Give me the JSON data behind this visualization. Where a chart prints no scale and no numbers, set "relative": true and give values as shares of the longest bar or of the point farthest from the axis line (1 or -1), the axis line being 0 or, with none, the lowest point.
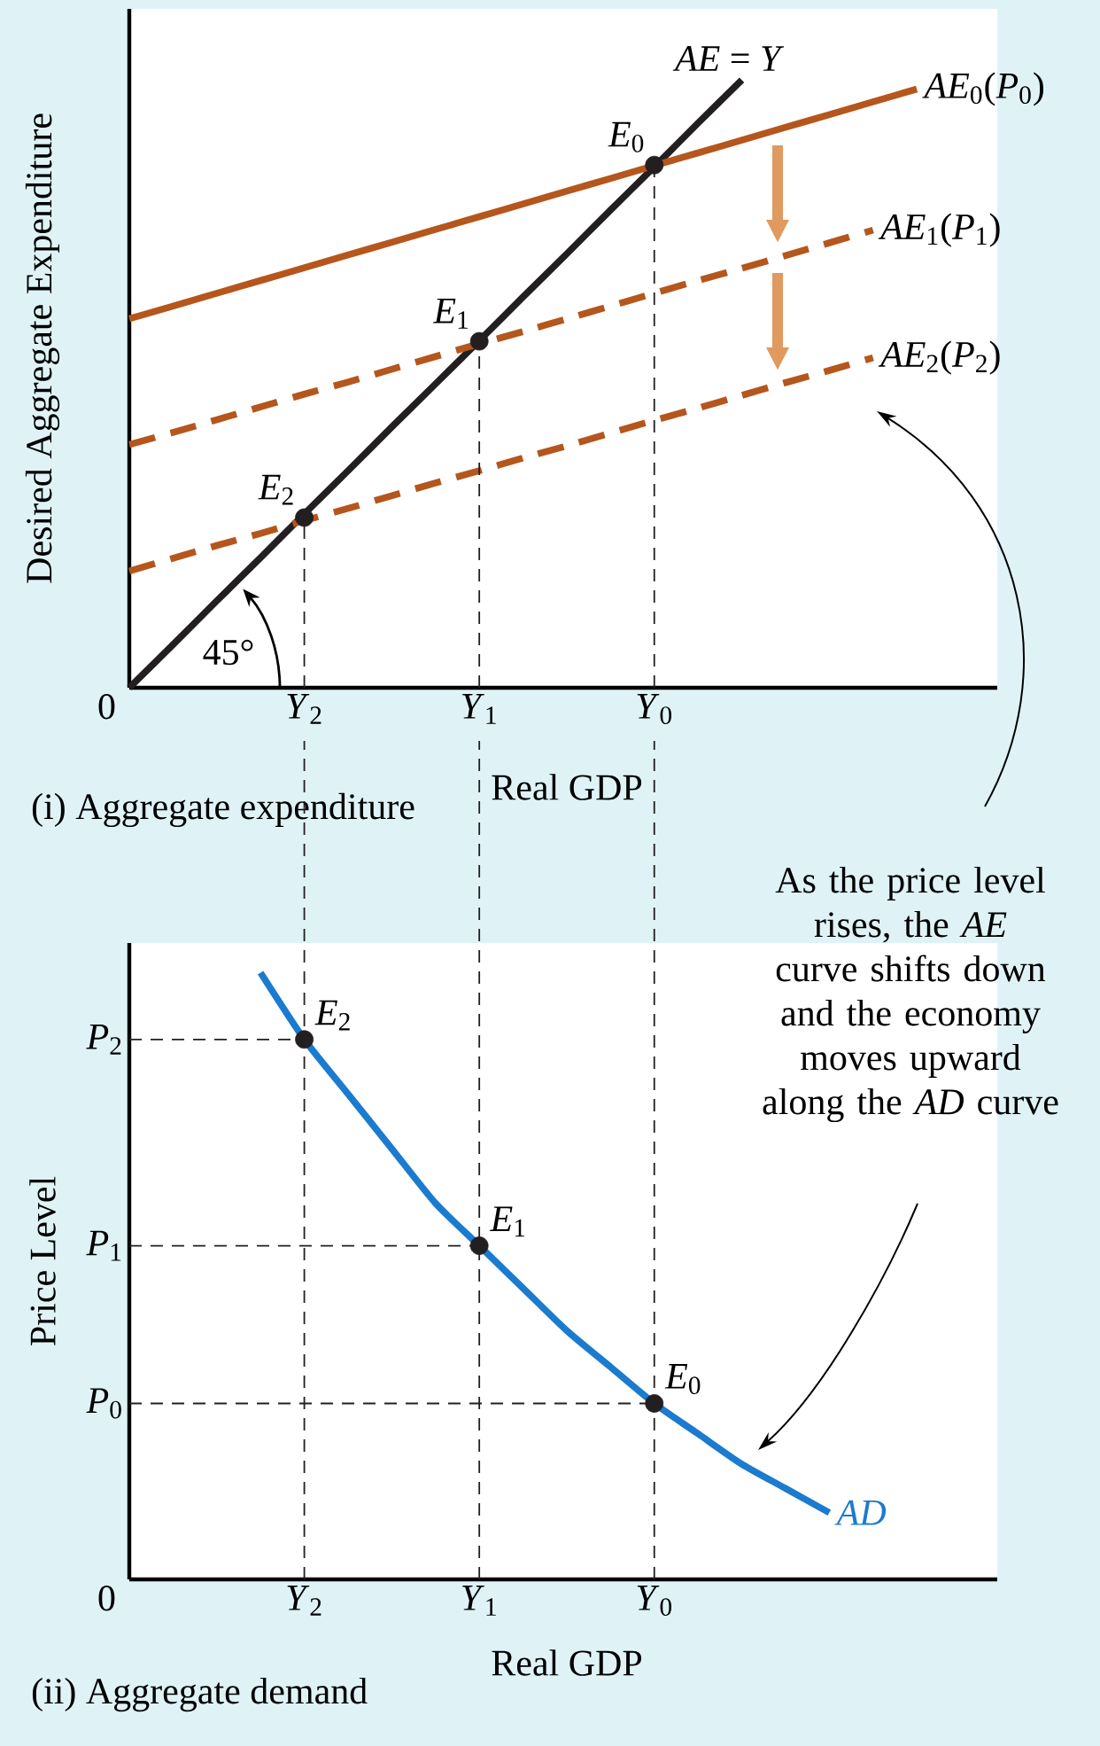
{
  "chart_data": [
    {
      "type": "line",
      "title": "(i) Aggregate expenditure",
      "xlabel": "Real GDP",
      "ylabel": "Desired Aggregate Expenditure",
      "relative": true,
      "categories": [
        "0",
        null,
        null,
        null,
        "*Y*$_{2}$",
        null,
        null,
        null,
        "*Y*$_{1}$",
        null,
        null,
        null,
        "*Y*$_{0}$",
        null,
        null,
        null,
        null,
        null,
        null
      ],
      "series": [
        {
          "name": "*AE* = *Y*",
          "color": "#231f20",
          "values": [
            0,
            0.071,
            0.143,
            0.214,
            0.286,
            0.357,
            0.429,
            0.5,
            0.571,
            0.643,
            0.714,
            0.786,
            0.857,
            0.929,
            1,
            null,
            null,
            null,
            null
          ],
          "line_style": "solid"
        },
        {
          "name": "*AE*$_{0}$(*P*$_{0}$)",
          "color": "#b5561d",
          "values": [
            0.607,
            0.628,
            0.649,
            0.67,
            0.691,
            0.712,
            0.733,
            0.754,
            0.775,
            0.796,
            0.817,
            0.838,
            0.859,
            0.88,
            0.901,
            0.922,
            0.943,
            0.964,
            0.985
          ],
          "line_style": "solid"
        },
        {
          "name": "*AE*$_{1}$(*P*$_{1}$)",
          "color": "#b5561d",
          "values": [
            0.4,
            0.42,
            0.441,
            0.462,
            0.483,
            0.503,
            0.524,
            0.545,
            0.566,
            0.586,
            0.607,
            0.628,
            0.649,
            0.67,
            0.69,
            0.711,
            0.732,
            0.753,
            null
          ],
          "line_style": "dashed"
        },
        {
          "name": "*AE*$_{2}$(*P*$_{2}$)",
          "color": "#b5561d",
          "values": [
            0.192,
            0.213,
            0.234,
            0.254,
            0.275,
            0.295,
            0.316,
            0.337,
            0.357,
            0.378,
            0.398,
            0.419,
            0.44,
            0.46,
            0.481,
            0.502,
            0.522,
            0.543,
            null
          ],
          "line_style": "dashed"
        },
        {
          "type": "lollipop",
          "color": "#231f20",
          "values": [
            null,
            null,
            null,
            null,
            0.28,
            null,
            null,
            null,
            0.57,
            null,
            null,
            null,
            0.86,
            null,
            null,
            null,
            null,
            null,
            null
          ],
          "marker": "circle",
          "line_style": "dashed"
        }
      ],
      "annotations": [
        {
          "text": "*E*$_{0}$",
          "x": "*Y*$_{0}$",
          "y": 0.86
        },
        {
          "text": "*E*$_{1}$",
          "x": "*Y*$_{1}$",
          "y": 0.57
        },
        {
          "text": "*E*$_{2}$",
          "x": "*Y*$_{2}$",
          "y": 0.28
        },
        "45°"
      ]
    },
    {
      "type": "line",
      "title": "(ii) Aggregate demand",
      "xlabel": "Real GDP",
      "ylabel": "Price Level",
      "relative": true,
      "categories": [
        "0",
        null,
        null,
        null,
        "*Y*$_{2}$",
        null,
        null,
        null,
        "*Y*$_{1}$",
        null,
        null,
        null,
        "*Y*$_{0}$",
        null,
        null,
        null,
        null,
        null,
        null
      ],
      "series": [
        {
          "name": "*AD*",
          "color": "#1b7bcf",
          "values": [
            null,
            null,
            null,
            1,
            0.89,
            0.8,
            0.71,
            0.62,
            0.55,
            0.48,
            0.41,
            0.35,
            0.29,
            0.24,
            0.19,
            0.15,
            0.11,
            null,
            null
          ],
          "line_style": "solid"
        },
        {
          "type": "scatter",
          "color": "#231f20",
          "values": [
            null,
            null,
            null,
            null,
            0.89,
            null,
            null,
            null,
            0.55,
            null,
            null,
            null,
            0.29,
            null,
            null,
            null,
            null,
            null,
            null
          ],
          "marker": "circle"
        }
      ],
      "ref_lines": [
        {
          "axis": "x",
          "value": "*Y*$_{2}$",
          "color": "#231f20",
          "line_style": "dashed"
        },
        {
          "axis": "x",
          "value": "*Y*$_{1}$",
          "color": "#231f20",
          "line_style": "dashed"
        },
        {
          "axis": "x",
          "value": "*Y*$_{0}$",
          "color": "#231f20",
          "line_style": "dashed"
        },
        {
          "axis": "y",
          "value": 0.89,
          "label": "*P*$_{2}$",
          "color": "#231f20",
          "line_style": "dashed"
        },
        {
          "axis": "y",
          "value": 0.55,
          "label": "*P*$_{1}$",
          "color": "#231f20",
          "line_style": "dashed"
        },
        {
          "axis": "y",
          "value": 0.29,
          "label": "*P*$_{0}$",
          "color": "#231f20",
          "line_style": "dashed"
        }
      ],
      "annotations": [
        {
          "text": "*E*$_{2}$",
          "x": "*Y*$_{2}$",
          "y": 0.89
        },
        {
          "text": "*E*$_{1}$",
          "x": "*Y*$_{1}$",
          "y": 0.55
        },
        {
          "text": "*E*$_{0}$",
          "x": "*Y*$_{0}$",
          "y": 0.29
        },
        "As the price level rises, the *AE* curve shifts down and the economy moves upward along the *AD* curve"
      ]
    }
  ]
}
